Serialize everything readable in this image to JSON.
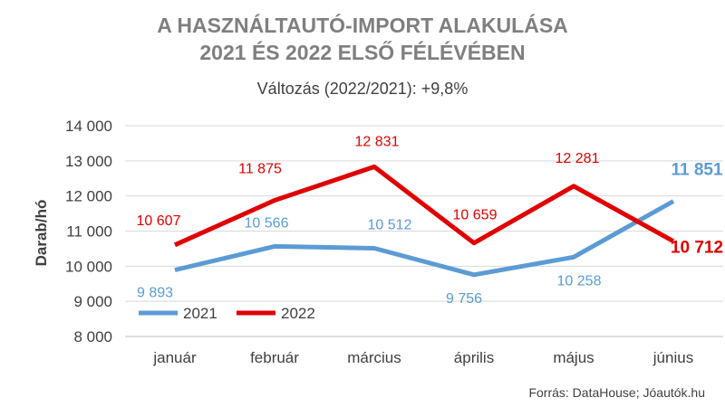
{
  "chart_data": {
    "type": "line",
    "title_line1": "A HASZNÁLTAUTÓ-IMPORT ALAKULÁSA",
    "title_line2": "2021 ÉS 2022 ELSŐ FÉLÉVÉBEN",
    "subtitle": "Változás (2022/2021): +9,8%",
    "ylabel": "Darab/hó",
    "xlabel": "",
    "source": "Forrás: DataHouse; Jóautók.hu",
    "categories": [
      "január",
      "február",
      "március",
      "április",
      "május",
      "június"
    ],
    "ylim": [
      8000,
      14000
    ],
    "yticks": [
      8000,
      9000,
      10000,
      11000,
      12000,
      13000,
      14000
    ],
    "ytick_labels": [
      "8 000",
      "9 000",
      "10 000",
      "11 000",
      "12 000",
      "13 000",
      "14 000"
    ],
    "grid": true,
    "legend_position": "bottom-left",
    "series": [
      {
        "name": "2021",
        "color": "#5b9bd5",
        "values": [
          9893,
          10566,
          10512,
          9756,
          10258,
          11851
        ],
        "labels": [
          "9 893",
          "10 566",
          "10 512",
          "9 756",
          "10 258",
          "11 851"
        ]
      },
      {
        "name": "2022",
        "color": "#e00000",
        "values": [
          10607,
          11875,
          12831,
          10659,
          12281,
          10712
        ],
        "labels": [
          "10 607",
          "11 875",
          "12 831",
          "10 659",
          "12 281",
          "10 712"
        ]
      }
    ]
  }
}
